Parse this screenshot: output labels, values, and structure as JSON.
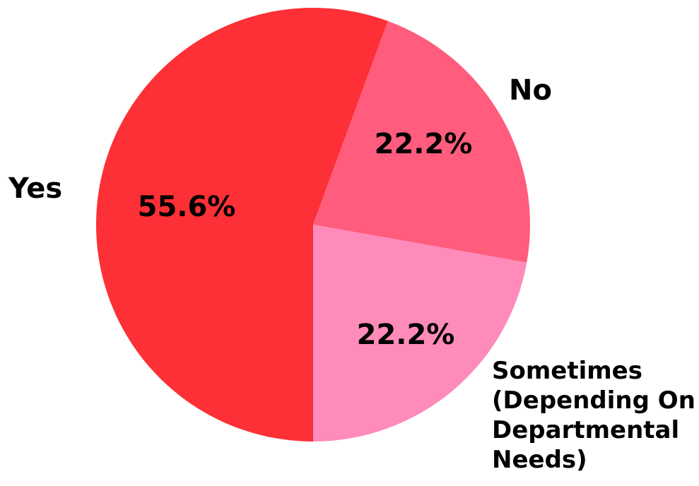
{
  "chart_data": {
    "type": "pie",
    "title": "",
    "slices": [
      {
        "label": "Yes",
        "value": 55.6,
        "value_label": "55.6%",
        "color": "#FC3036"
      },
      {
        "label": "No",
        "value": 22.2,
        "value_label": "22.2%",
        "color": "#FF5C7E"
      },
      {
        "label": "Sometimes (Depending On Departmental Needs)",
        "label_lines": [
          "Sometimes",
          "(Depending On",
          "Departmental",
          "Needs)"
        ],
        "value": 22.2,
        "value_label": "22.2%",
        "color": "#FF8BBA"
      }
    ],
    "legend": "none",
    "start_angle_deg": 0,
    "direction": "clockwise"
  }
}
